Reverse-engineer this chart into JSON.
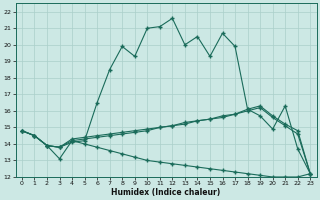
{
  "xlabel": "Humidex (Indice chaleur)",
  "xlim": [
    -0.5,
    23.5
  ],
  "ylim": [
    12,
    22.5
  ],
  "yticks": [
    12,
    13,
    14,
    15,
    16,
    17,
    18,
    19,
    20,
    21,
    22
  ],
  "xticks": [
    0,
    1,
    2,
    3,
    4,
    5,
    6,
    7,
    8,
    9,
    10,
    11,
    12,
    13,
    14,
    15,
    16,
    17,
    18,
    19,
    20,
    21,
    22,
    23
  ],
  "bg_color": "#cce8e4",
  "grid_color": "#aacfca",
  "line_color": "#1a6b5a",
  "series1_x": [
    0,
    1,
    2,
    3,
    4,
    5,
    6,
    7,
    8,
    9,
    10,
    11,
    12,
    13,
    14,
    15,
    16,
    17,
    18,
    19,
    20,
    21,
    22,
    23
  ],
  "series1_y": [
    14.8,
    14.5,
    13.9,
    13.8,
    14.1,
    14.2,
    16.5,
    18.5,
    19.9,
    19.3,
    21.0,
    21.1,
    21.6,
    20.0,
    20.5,
    19.3,
    20.7,
    19.9,
    16.1,
    15.7,
    14.9,
    16.3,
    13.7,
    12.2
  ],
  "series2_x": [
    0,
    1,
    2,
    3,
    4,
    5,
    6,
    7,
    8,
    9,
    10,
    11,
    12,
    13,
    14,
    15,
    16,
    17,
    18,
    19,
    20,
    21,
    22,
    23
  ],
  "series2_y": [
    14.8,
    14.5,
    13.9,
    13.8,
    14.2,
    14.3,
    14.4,
    14.5,
    14.6,
    14.7,
    14.8,
    15.0,
    15.1,
    15.2,
    15.4,
    15.5,
    15.6,
    15.8,
    16.0,
    16.2,
    15.6,
    15.1,
    14.6,
    12.2
  ],
  "series3_x": [
    0,
    1,
    2,
    3,
    4,
    5,
    6,
    7,
    8,
    9,
    10,
    11,
    12,
    13,
    14,
    15,
    16,
    17,
    18,
    19,
    20,
    21,
    22,
    23
  ],
  "series3_y": [
    14.8,
    14.5,
    13.9,
    13.8,
    14.3,
    14.4,
    14.5,
    14.6,
    14.7,
    14.8,
    14.9,
    15.0,
    15.1,
    15.3,
    15.4,
    15.5,
    15.7,
    15.8,
    16.1,
    16.3,
    15.7,
    15.2,
    14.8,
    12.2
  ],
  "series4_x": [
    0,
    1,
    2,
    3,
    4,
    5,
    6,
    7,
    8,
    9,
    10,
    11,
    12,
    13,
    14,
    15,
    16,
    17,
    18,
    19,
    20,
    21,
    22,
    23
  ],
  "series4_y": [
    14.8,
    14.5,
    13.9,
    13.1,
    14.2,
    14.0,
    13.8,
    13.6,
    13.4,
    13.2,
    13.0,
    12.9,
    12.8,
    12.7,
    12.6,
    12.5,
    12.4,
    12.3,
    12.2,
    12.1,
    12.0,
    12.0,
    12.0,
    12.2
  ]
}
